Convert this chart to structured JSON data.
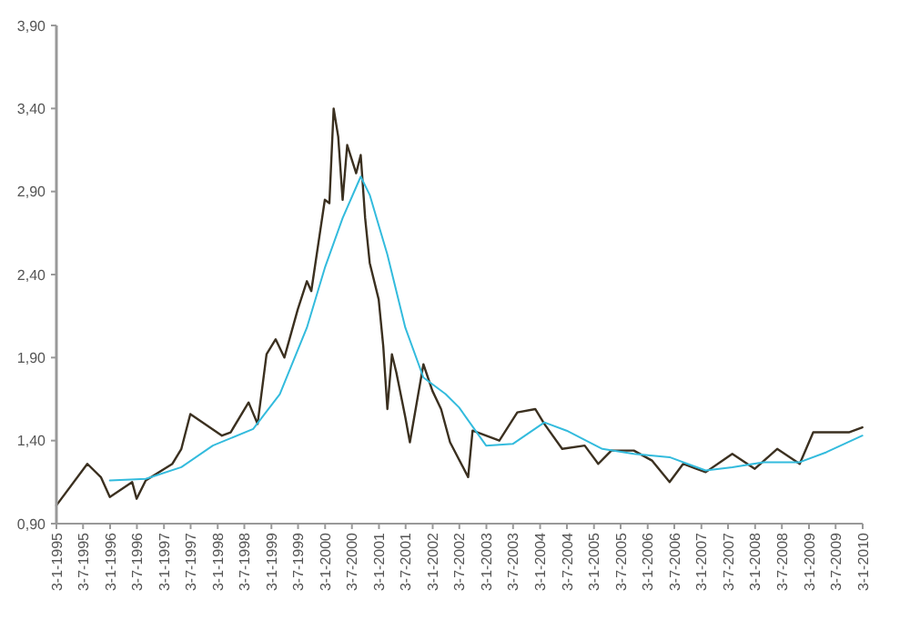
{
  "chart_data": {
    "type": "line",
    "xlim": [
      "1995-01-03",
      "2010-01-03"
    ],
    "ylim": [
      0.9,
      3.9
    ],
    "yticks": [
      {
        "value": 0.9,
        "label": "0,90"
      },
      {
        "value": 1.4,
        "label": "1,40"
      },
      {
        "value": 1.9,
        "label": "1,90"
      },
      {
        "value": 2.4,
        "label": "2,40"
      },
      {
        "value": 2.9,
        "label": "2,90"
      },
      {
        "value": 3.4,
        "label": "3,40"
      },
      {
        "value": 3.9,
        "label": "3,90"
      }
    ],
    "xticks": [
      {
        "value": "1995-01-03",
        "label": "3-1-1995"
      },
      {
        "value": "1995-07-03",
        "label": "3-7-1995"
      },
      {
        "value": "1996-01-03",
        "label": "3-1-1996"
      },
      {
        "value": "1996-07-03",
        "label": "3-7-1996"
      },
      {
        "value": "1997-01-03",
        "label": "3-1-1997"
      },
      {
        "value": "1997-07-03",
        "label": "3-7-1997"
      },
      {
        "value": "1998-01-03",
        "label": "3-1-1998"
      },
      {
        "value": "1998-07-03",
        "label": "3-7-1998"
      },
      {
        "value": "1999-01-03",
        "label": "3-1-1999"
      },
      {
        "value": "1999-07-03",
        "label": "3-7-1999"
      },
      {
        "value": "2000-01-03",
        "label": "3-1-2000"
      },
      {
        "value": "2000-07-03",
        "label": "3-7-2000"
      },
      {
        "value": "2001-01-03",
        "label": "3-1-2001"
      },
      {
        "value": "2001-07-03",
        "label": "3-7-2001"
      },
      {
        "value": "2002-01-03",
        "label": "3-1-2002"
      },
      {
        "value": "2002-07-03",
        "label": "3-7-2002"
      },
      {
        "value": "2003-01-03",
        "label": "3-1-2003"
      },
      {
        "value": "2003-07-03",
        "label": "3-7-2003"
      },
      {
        "value": "2004-01-03",
        "label": "3-1-2004"
      },
      {
        "value": "2004-07-03",
        "label": "3-7-2004"
      },
      {
        "value": "2005-01-03",
        "label": "3-1-2005"
      },
      {
        "value": "2005-07-03",
        "label": "3-7-2005"
      },
      {
        "value": "2006-01-03",
        "label": "3-1-2006"
      },
      {
        "value": "2006-07-03",
        "label": "3-7-2006"
      },
      {
        "value": "2007-01-03",
        "label": "3-1-2007"
      },
      {
        "value": "2007-07-03",
        "label": "3-7-2007"
      },
      {
        "value": "2008-01-03",
        "label": "3-1-2008"
      },
      {
        "value": "2008-07-03",
        "label": "3-7-2008"
      },
      {
        "value": "2009-01-03",
        "label": "3-1-2009"
      },
      {
        "value": "2009-07-03",
        "label": "3-7-2009"
      },
      {
        "value": "2010-01-03",
        "label": "3-1-2010"
      }
    ],
    "series": [
      {
        "color": "#3b3020",
        "x": [
          "1995-01-03",
          "1995-08",
          "1995-11",
          "1996-01",
          "1996-06",
          "1996-07",
          "1996-09",
          "1997-03",
          "1997-05",
          "1997-07",
          "1998-02",
          "1998-04",
          "1998-08",
          "1998-10",
          "1998-12",
          "1999-02",
          "1999-04",
          "1999-07",
          "1999-09",
          "1999-10",
          "2000-01",
          "2000-02",
          "2000-03",
          "2000-04",
          "2000-05",
          "2000-06",
          "2000-08",
          "2000-09",
          "2000-10",
          "2000-11",
          "2001-01",
          "2001-02",
          "2001-03",
          "2001-04",
          "2001-05",
          "2001-07",
          "2001-08",
          "2001-11",
          "2002-01",
          "2002-03",
          "2002-05",
          "2002-09",
          "2002-10",
          "2003-04",
          "2003-08",
          "2003-12",
          "2004-02",
          "2004-06",
          "2004-11",
          "2005-02",
          "2005-05",
          "2005-10",
          "2006-02",
          "2006-06",
          "2006-09",
          "2007-02",
          "2007-08",
          "2008-01",
          "2008-06",
          "2008-11",
          "2009-02",
          "2009-06",
          "2009-10",
          "2010-01"
        ],
        "values": [
          1.01,
          1.26,
          1.18,
          1.06,
          1.15,
          1.05,
          1.16,
          1.26,
          1.35,
          1.56,
          1.43,
          1.45,
          1.63,
          1.5,
          1.92,
          2.01,
          1.9,
          2.19,
          2.36,
          2.3,
          2.85,
          2.83,
          3.4,
          3.23,
          2.85,
          3.18,
          3.01,
          3.12,
          2.74,
          2.47,
          2.25,
          1.97,
          1.59,
          1.92,
          1.81,
          1.54,
          1.39,
          1.86,
          1.7,
          1.59,
          1.39,
          1.18,
          1.46,
          1.4,
          1.57,
          1.59,
          1.5,
          1.35,
          1.37,
          1.26,
          1.34,
          1.34,
          1.28,
          1.15,
          1.26,
          1.21,
          1.32,
          1.23,
          1.35,
          1.26,
          1.45,
          1.45,
          1.45,
          1.48
        ]
      },
      {
        "color": "#33bbdd",
        "x": [
          "1996-01",
          "1996-09",
          "1997-05",
          "1997-12",
          "1998-09",
          "1999-03",
          "1999-09",
          "2000-01",
          "2000-05",
          "2000-09",
          "2000-11",
          "2001-03",
          "2001-07",
          "2001-11",
          "2002-04",
          "2002-07",
          "2003-01",
          "2003-07",
          "2004-02",
          "2004-07",
          "2005-03",
          "2005-10",
          "2006-06",
          "2007-02",
          "2007-08",
          "2008-03",
          "2008-11",
          "2009-05",
          "2010-01"
        ],
        "values": [
          1.16,
          1.17,
          1.24,
          1.37,
          1.47,
          1.68,
          2.08,
          2.44,
          2.74,
          2.99,
          2.88,
          2.52,
          2.08,
          1.78,
          1.68,
          1.6,
          1.37,
          1.38,
          1.51,
          1.46,
          1.35,
          1.32,
          1.3,
          1.22,
          1.24,
          1.27,
          1.27,
          1.33,
          1.43
        ]
      }
    ]
  }
}
